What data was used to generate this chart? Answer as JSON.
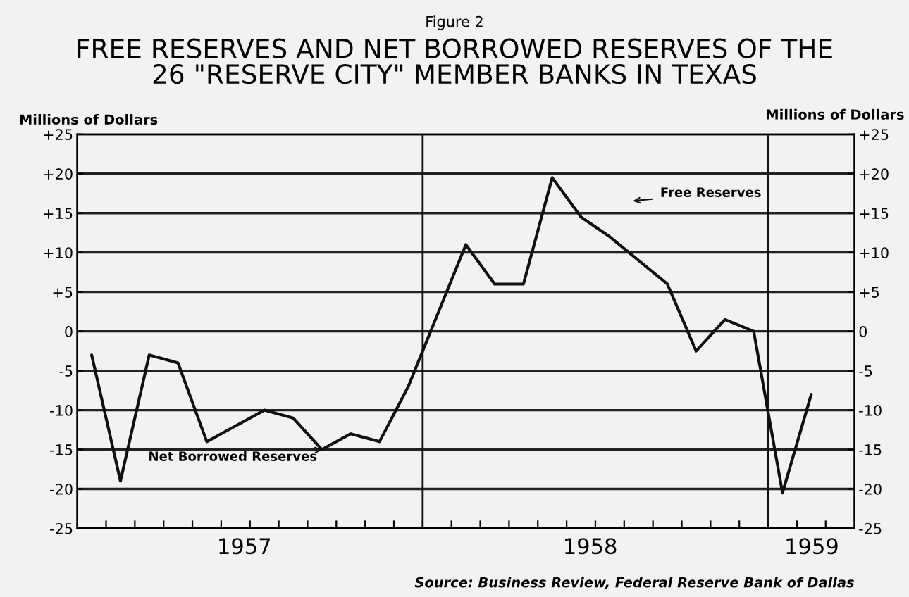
{
  "chart_data": {
    "type": "line",
    "title": "FREE RESERVES AND NET BORROWED RESERVES OF THE\n26 \"RESERVE CITY\" MEMBER BANKS IN TEXAS",
    "subtitle": "Figure 2",
    "ylabel": "Millions of Dollars",
    "y2label": "Millions of Dollars",
    "categories": [
      null,
      null,
      null,
      null,
      null,
      null,
      null,
      null,
      null,
      null,
      null,
      null,
      null,
      null,
      null,
      null,
      null,
      null,
      null,
      null,
      null,
      null,
      null,
      null,
      null,
      null
    ],
    "series": [
      {
        "color": "#111111",
        "values": [
          -3,
          -19,
          -3,
          -4,
          -14,
          -12,
          -10,
          -11,
          -15,
          -13,
          -14,
          -7,
          2,
          11,
          6,
          6,
          19.5,
          14.5,
          12,
          9,
          6,
          -2.5,
          1.5,
          0,
          -20.5,
          -8
        ]
      }
    ],
    "ylim": [
      -25,
      25
    ],
    "yticks": [
      {
        "value": 25,
        "label": "+25"
      },
      {
        "value": 20,
        "label": "+20"
      },
      {
        "value": 15,
        "label": "+15"
      },
      {
        "value": 10,
        "label": "+10"
      },
      {
        "value": 5,
        "label": "+5"
      },
      0,
      -5,
      -10,
      -15,
      -20,
      -25
    ],
    "y2lim": [
      -25,
      25
    ],
    "y2ticks": [
      {
        "value": 25,
        "label": "+25"
      },
      {
        "value": 20,
        "label": "+20"
      },
      {
        "value": 15,
        "label": "+15"
      },
      {
        "value": 10,
        "label": "+10"
      },
      {
        "value": 5,
        "label": "+5"
      },
      0,
      -5,
      -10,
      -15,
      -20,
      -25
    ],
    "grid": "y",
    "annotations": [
      "1957",
      "1958",
      "1959",
      "Net Borrowed Reserves",
      "Free Reserves",
      "Source: Business Review, Federal Reserve Bank of Dallas"
    ]
  }
}
